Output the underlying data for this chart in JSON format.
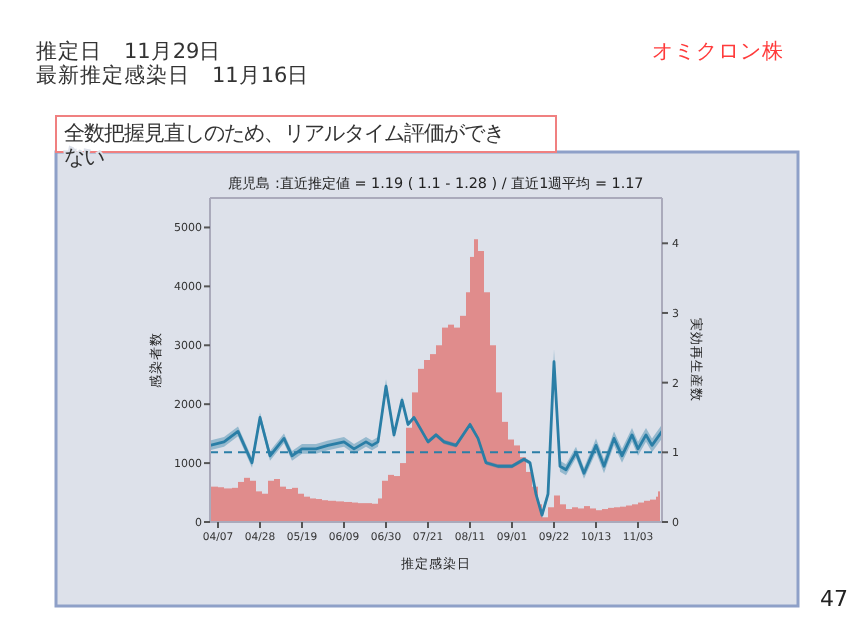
{
  "chart_data": {
    "type": "bar",
    "title": "鹿児島 :直近推定値 = 1.19 ( 1.1 - 1.28 ) / 直近1週平均 = 1.17",
    "xlabel": "推定感染日",
    "ylabel": "感染者数",
    "y2label": "実効再生産数",
    "annotations": [
      "推定日　11月29日",
      "最新推定感染日　11月16日",
      "オミクロン株",
      "全数把握見直しのため、リアルタイム評価ができない",
      "47"
    ],
    "xlim": [
      "--04-03",
      "--11-15"
    ],
    "xticks": [
      {
        "value": "--04-07",
        "label": "04/07"
      },
      {
        "value": "--04-28",
        "label": "04/28"
      },
      {
        "value": "--05-19",
        "label": "05/19"
      },
      {
        "value": "--06-09",
        "label": "06/09"
      },
      {
        "value": "--06-30",
        "label": "06/30"
      },
      {
        "value": "--07-21",
        "label": "07/21"
      },
      {
        "value": "--08-11",
        "label": "08/11"
      },
      {
        "value": "--09-01",
        "label": "09/01"
      },
      {
        "value": "--09-22",
        "label": "09/22"
      },
      {
        "value": "--10-13",
        "label": "10/13"
      },
      {
        "value": "--11-03",
        "label": "11/03"
      }
    ],
    "ylim": [
      0,
      5500
    ],
    "yticks": [
      0,
      1000,
      2000,
      3000,
      4000,
      5000
    ],
    "y2lim": [
      0,
      4.65
    ],
    "y2ticks": [
      0,
      1,
      2,
      3,
      4
    ],
    "ref_lines": [
      {
        "axis": "y2",
        "value": 1,
        "color": "#2a7ea6",
        "line_style": "dashed"
      }
    ],
    "series": [
      {
        "color": "#e08c8c",
        "x": [
          "--04-03",
          "--04-07",
          "--04-10",
          "--04-14",
          "--04-17",
          "--04-20",
          "--04-23",
          "--04-26",
          "--04-29",
          "--05-02",
          "--05-05",
          "--05-08",
          "--05-11",
          "--05-14",
          "--05-17",
          "--05-20",
          "--05-23",
          "--05-26",
          "--05-29",
          "--06-01",
          "--06-05",
          "--06-09",
          "--06-13",
          "--06-16",
          "--06-19",
          "--06-23",
          "--06-26",
          "--06-28",
          "--07-01",
          "--07-04",
          "--07-07",
          "--07-10",
          "--07-13",
          "--07-16",
          "--07-19",
          "--07-22",
          "--07-25",
          "--07-28",
          "--07-31",
          "--08-03",
          "--08-06",
          "--08-09",
          "--08-11",
          "--08-13",
          "--08-15",
          "--08-18",
          "--08-21",
          "--08-24",
          "--08-27",
          "--08-30",
          "--09-02",
          "--09-05",
          "--09-08",
          "--09-11",
          "--09-14",
          "--09-16",
          "--09-19",
          "--09-22",
          "--09-25",
          "--09-28",
          "--10-01",
          "--10-04",
          "--10-07",
          "--10-10",
          "--10-13",
          "--10-16",
          "--10-19",
          "--10-22",
          "--10-25",
          "--10-28",
          "--10-31",
          "--11-03",
          "--11-06",
          "--11-09",
          "--11-12",
          "--11-13"
        ],
        "values": [
          600,
          590,
          570,
          580,
          680,
          750,
          700,
          520,
          480,
          700,
          730,
          600,
          560,
          580,
          480,
          430,
          400,
          390,
          370,
          360,
          350,
          340,
          330,
          320,
          320,
          310,
          400,
          700,
          800,
          780,
          1000,
          1600,
          2200,
          2600,
          2750,
          2850,
          3000,
          3300,
          3350,
          3300,
          3500,
          3900,
          4500,
          4800,
          4600,
          3900,
          3000,
          2200,
          1700,
          1400,
          1300,
          1100,
          850,
          600,
          300,
          80,
          250,
          450,
          300,
          220,
          250,
          230,
          270,
          230,
          200,
          220,
          240,
          250,
          260,
          280,
          300,
          330,
          360,
          380,
          430,
          520
        ]
      },
      {
        "type": "line",
        "axis": "y2",
        "color": "#2a7ea6",
        "x": [
          "--04-03",
          "--04-10",
          "--04-17",
          "--04-24",
          "--04-28",
          "--05-03",
          "--05-10",
          "--05-14",
          "--05-19",
          "--05-26",
          "--06-01",
          "--06-09",
          "--06-14",
          "--06-20",
          "--06-23",
          "--06-26",
          "--06-30",
          "--07-04",
          "--07-08",
          "--07-11",
          "--07-14",
          "--07-18",
          "--07-21",
          "--07-25",
          "--07-29",
          "--08-04",
          "--08-11",
          "--08-15",
          "--08-19",
          "--08-25",
          "--09-01",
          "--09-07",
          "--09-10",
          "--09-13",
          "--09-16",
          "--09-19",
          "--09-22",
          "--09-25",
          "--09-28",
          "--10-03",
          "--10-07",
          "--10-13",
          "--10-17",
          "--10-22",
          "--10-26",
          "--10-31",
          "--11-03",
          "--11-07",
          "--11-10",
          "--11-15"
        ],
        "values": [
          1.1,
          1.15,
          1.3,
          0.85,
          1.5,
          0.95,
          1.2,
          0.95,
          1.05,
          1.05,
          1.1,
          1.15,
          1.05,
          1.15,
          1.1,
          1.15,
          1.95,
          1.25,
          1.75,
          1.4,
          1.5,
          1.3,
          1.15,
          1.25,
          1.15,
          1.1,
          1.4,
          1.2,
          0.85,
          0.8,
          0.8,
          0.9,
          0.85,
          0.4,
          0.1,
          0.4,
          2.3,
          0.8,
          0.75,
          1.0,
          0.7,
          1.1,
          0.8,
          1.2,
          0.95,
          1.25,
          1.05,
          1.25,
          1.1,
          1.3
        ],
        "lower": [
          1.03,
          1.08,
          1.23,
          0.78,
          1.43,
          0.88,
          1.13,
          0.88,
          0.98,
          0.98,
          1.03,
          1.08,
          0.98,
          1.08,
          1.03,
          1.08,
          1.85,
          1.2,
          1.7,
          1.37,
          1.47,
          1.27,
          1.12,
          1.22,
          1.12,
          1.07,
          1.37,
          1.17,
          0.82,
          0.77,
          0.77,
          0.87,
          0.82,
          0.36,
          0.05,
          0.34,
          2.12,
          0.72,
          0.67,
          0.92,
          0.62,
          1.0,
          0.7,
          1.1,
          0.85,
          1.15,
          0.95,
          1.15,
          1.0,
          1.2
        ],
        "upper": [
          1.17,
          1.22,
          1.37,
          0.92,
          1.57,
          1.02,
          1.27,
          1.02,
          1.12,
          1.12,
          1.17,
          1.22,
          1.12,
          1.22,
          1.17,
          1.22,
          2.05,
          1.3,
          1.8,
          1.43,
          1.53,
          1.33,
          1.18,
          1.28,
          1.18,
          1.13,
          1.43,
          1.23,
          0.88,
          0.83,
          0.83,
          0.93,
          0.88,
          0.44,
          0.15,
          0.46,
          2.48,
          0.88,
          0.83,
          1.08,
          0.78,
          1.2,
          0.9,
          1.3,
          1.05,
          1.35,
          1.15,
          1.35,
          1.2,
          1.4
        ]
      }
    ]
  }
}
